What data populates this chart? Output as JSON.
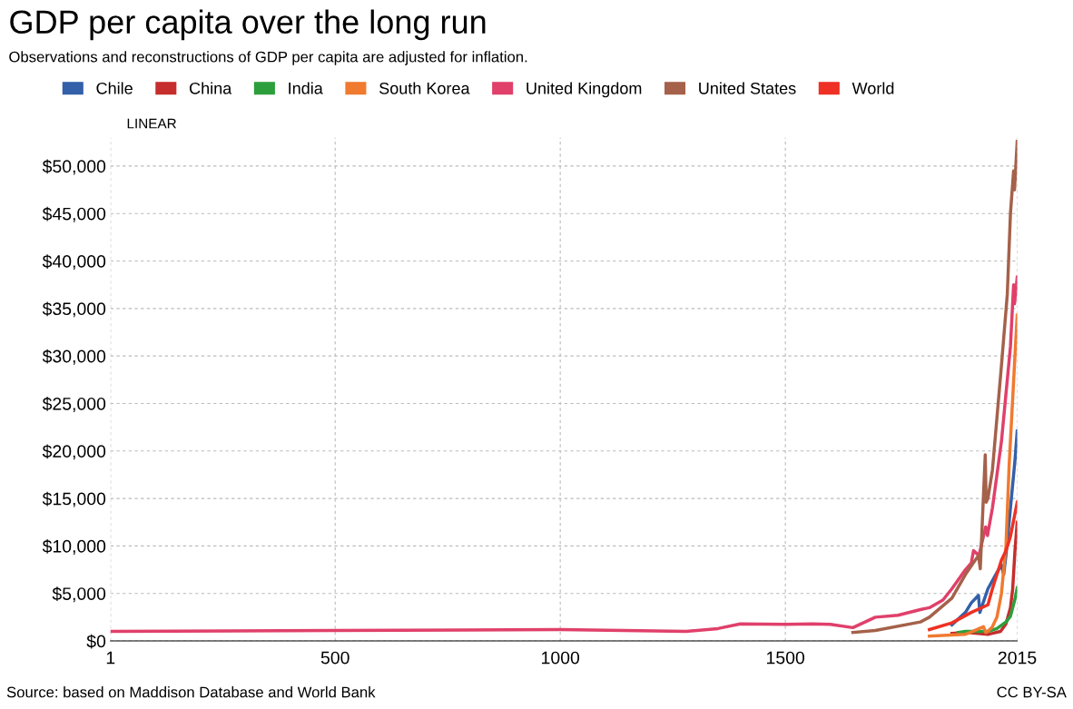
{
  "chart_data": {
    "type": "line",
    "title": "GDP per capita over the long run",
    "subtitle": "Observations and reconstructions of GDP per capita are adjusted for inflation.",
    "annotations": [
      "LINEAR",
      "Source: based on Maddison Database and World Bank",
      "CC BY-SA"
    ],
    "series": [
      {
        "name": "Chile",
        "color": "#3360a9",
        "x": [
          1870,
          1900,
          1913,
          1929,
          1932,
          1950,
          1970,
          1980,
          1985,
          1990,
          2000,
          2010,
          2015
        ],
        "values": [
          1700,
          3000,
          4000,
          4800,
          3000,
          5500,
          7200,
          8000,
          7000,
          9000,
          14000,
          19000,
          22100
        ]
      },
      {
        "name": "China",
        "color": "#c62d2d",
        "x": [
          1870,
          1900,
          1950,
          1960,
          1978,
          1990,
          2000,
          2005,
          2010,
          2015
        ],
        "values": [
          800,
          900,
          700,
          800,
          1000,
          1800,
          3500,
          5500,
          9500,
          12500
        ]
      },
      {
        "name": "India",
        "color": "#2c9f3c",
        "x": [
          1884,
          1900,
          1950,
          1970,
          1990,
          2000,
          2010,
          2015
        ],
        "values": [
          900,
          1000,
          1000,
          1300,
          2000,
          2600,
          4400,
          5600
        ]
      },
      {
        "name": "South Korea",
        "color": "#f07a2f",
        "x": [
          1820,
          1900,
          1911,
          1940,
          1945,
          1950,
          1960,
          1970,
          1980,
          1990,
          1997,
          2010,
          2015
        ],
        "values": [
          500,
          700,
          900,
          1500,
          900,
          1000,
          1500,
          2500,
          5000,
          10000,
          18400,
          30000,
          34300
        ]
      },
      {
        "name": "United Kingdom",
        "color": "#e0406a",
        "x": [
          1,
          500,
          1000,
          1280,
          1350,
          1400,
          1500,
          1560,
          1600,
          1650,
          1700,
          1750,
          1800,
          1820,
          1850,
          1870,
          1900,
          1913,
          1918,
          1930,
          1945,
          1949,
          1960,
          1970,
          1980,
          1990,
          2000,
          2007,
          2009,
          2015
        ],
        "values": [
          1000,
          1100,
          1200,
          1000,
          1300,
          1800,
          1750,
          1800,
          1750,
          1400,
          2500,
          2700,
          3300,
          3500,
          4300,
          5500,
          7500,
          8200,
          9500,
          9000,
          12000,
          11100,
          14000,
          17500,
          21000,
          26000,
          31000,
          37500,
          35500,
          38300
        ]
      },
      {
        "name": "United States",
        "color": "#a5614a",
        "x": [
          1650,
          1700,
          1800,
          1820,
          1870,
          1900,
          1929,
          1933,
          1944,
          1946,
          1950,
          1960,
          1970,
          1980,
          1993,
          2000,
          2007,
          2009,
          2015
        ],
        "values": [
          900,
          1100,
          2000,
          2500,
          4500,
          7000,
          9000,
          7600,
          19600,
          14600,
          15000,
          18000,
          23500,
          29000,
          36500,
          45000,
          49500,
          47500,
          52600
        ]
      },
      {
        "name": "World",
        "color": "#ee3124",
        "x": [
          1820,
          1870,
          1913,
          1950,
          1960,
          1970,
          1980,
          1990,
          2000,
          2015
        ],
        "values": [
          1200,
          1900,
          3000,
          3800,
          5500,
          7000,
          8500,
          9500,
          11000,
          14600
        ]
      }
    ],
    "xlim": [
      1,
      2015
    ],
    "xticks": [
      1,
      500,
      1000,
      1500,
      2015
    ],
    "ylim": [
      0,
      53000
    ],
    "yticks": [
      {
        "value": 0,
        "label": "$0"
      },
      {
        "value": 5000,
        "label": "$5,000"
      },
      {
        "value": 10000,
        "label": "$10,000"
      },
      {
        "value": 15000,
        "label": "$15,000"
      },
      {
        "value": 20000,
        "label": "$20,000"
      },
      {
        "value": 25000,
        "label": "$25,000"
      },
      {
        "value": 30000,
        "label": "$30,000"
      },
      {
        "value": 35000,
        "label": "$35,000"
      },
      {
        "value": 40000,
        "label": "$40,000"
      },
      {
        "value": 45000,
        "label": "$45,000"
      },
      {
        "value": 50000,
        "label": "$50,000"
      }
    ],
    "grid": true,
    "legend": "top left",
    "line_style": "solid",
    "marker": "none"
  }
}
